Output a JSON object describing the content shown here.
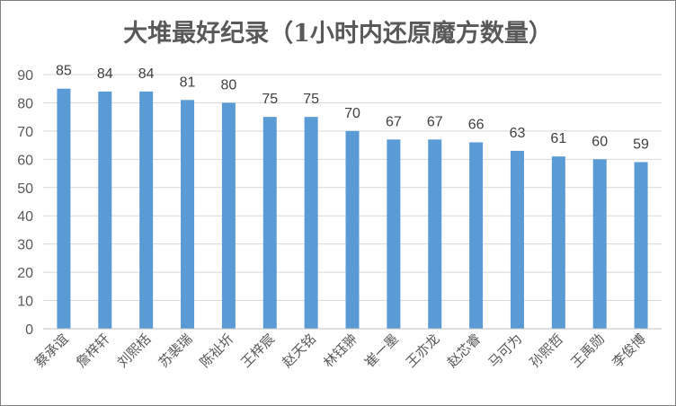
{
  "chart_data": {
    "type": "bar",
    "title": "大堆最好纪录（1小时内还原魔方数量）",
    "xlabel": "",
    "ylabel": "",
    "categories": [
      "蔡承谊",
      "詹梓轩",
      "刘熙栝",
      "苏裴瑞",
      "陈祉圻",
      "王梓宸",
      "赵天铭",
      "林钰翀",
      "崔一墨",
      "王亦龙",
      "赵芯睿",
      "马可为",
      "孙熙哲",
      "王禹勋",
      "李俊博"
    ],
    "values": [
      85,
      84,
      84,
      81,
      80,
      75,
      75,
      70,
      67,
      67,
      66,
      63,
      61,
      60,
      59
    ],
    "ylim": [
      0,
      90
    ],
    "yticks": [
      0,
      10,
      20,
      30,
      40,
      50,
      60,
      70,
      80,
      90
    ],
    "grid": true,
    "legend": "none",
    "bar_color": "#5b9bd5"
  }
}
